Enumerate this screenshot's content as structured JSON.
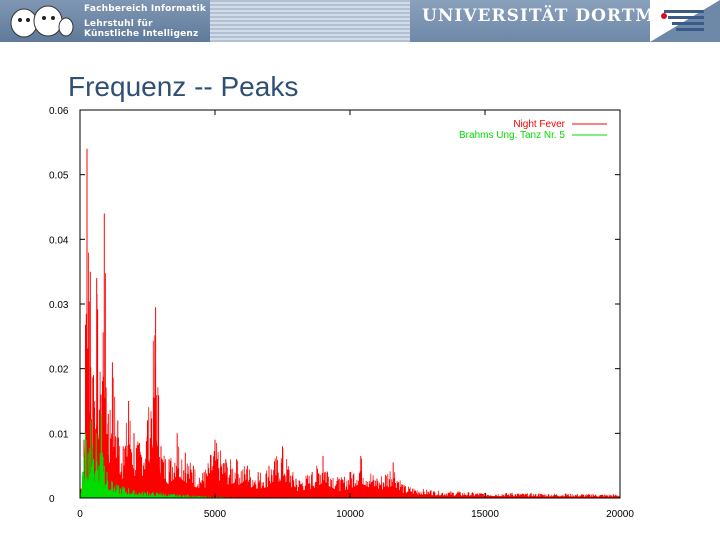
{
  "header": {
    "institute_line1": "Fachbereich Informatik",
    "institute_line2": "Lehrstuhl für",
    "institute_line3": "Künstliche Intelligenz",
    "university": "UNIVERSITÄT DORTMUND"
  },
  "slide": {
    "title": "Frequenz -- Peaks"
  },
  "colors": {
    "series_red": "#ff0000",
    "series_green": "#00dd00",
    "title_blue": "#2f4f75",
    "header_blue": "#6f88a8"
  },
  "chart_data": {
    "type": "area",
    "title": "",
    "xlabel": "",
    "ylabel": "",
    "xlim": [
      0,
      20000
    ],
    "ylim": [
      0,
      0.06
    ],
    "x_ticks": [
      0,
      5000,
      10000,
      15000,
      20000
    ],
    "y_ticks": [
      0,
      0.01,
      0.02,
      0.03,
      0.04,
      0.05,
      0.06
    ],
    "x_tick_labels": [
      "0",
      "5000",
      "10000",
      "15000",
      "20000"
    ],
    "y_tick_labels": [
      "0",
      "0.01",
      "0.02",
      "0.03",
      "0.04",
      "0.05",
      "0.06"
    ],
    "grid": false,
    "legend_position": "top-right",
    "series": [
      {
        "name": "Night Fever",
        "color": "#ff0000",
        "points": [
          [
            0,
            0.0005
          ],
          [
            150,
            0.009
          ],
          [
            260,
            0.054
          ],
          [
            380,
            0.035
          ],
          [
            500,
            0.019
          ],
          [
            620,
            0.034
          ],
          [
            780,
            0.016
          ],
          [
            900,
            0.044
          ],
          [
            1050,
            0.013
          ],
          [
            1200,
            0.021
          ],
          [
            1400,
            0.012
          ],
          [
            1600,
            0.008
          ],
          [
            1800,
            0.015
          ],
          [
            2000,
            0.01
          ],
          [
            2200,
            0.0085
          ],
          [
            2500,
            0.012
          ],
          [
            2800,
            0.0295
          ],
          [
            3000,
            0.008
          ],
          [
            3300,
            0.006
          ],
          [
            3600,
            0.01
          ],
          [
            3900,
            0.007
          ],
          [
            4200,
            0.005
          ],
          [
            4600,
            0.004
          ],
          [
            5000,
            0.009
          ],
          [
            5400,
            0.006
          ],
          [
            5800,
            0.006
          ],
          [
            6200,
            0.005
          ],
          [
            6600,
            0.004
          ],
          [
            7000,
            0.005
          ],
          [
            7500,
            0.008
          ],
          [
            8000,
            0.003
          ],
          [
            8600,
            0.004
          ],
          [
            9000,
            0.0065
          ],
          [
            9600,
            0.003
          ],
          [
            10000,
            0.004
          ],
          [
            10400,
            0.0065
          ],
          [
            11000,
            0.003
          ],
          [
            11600,
            0.0055
          ],
          [
            12000,
            0.002
          ],
          [
            13000,
            0.0012
          ],
          [
            14000,
            0.001
          ],
          [
            15000,
            0.0008
          ],
          [
            16000,
            0.0008
          ],
          [
            17000,
            0.0007
          ],
          [
            18000,
            0.0007
          ],
          [
            19000,
            0.0006
          ],
          [
            20000,
            0.0006
          ]
        ]
      },
      {
        "name": "Brahms Ung. Tanz Nr. 5",
        "color": "#00dd00",
        "points": [
          [
            0,
            0.0003
          ],
          [
            100,
            0.004
          ],
          [
            200,
            0.01
          ],
          [
            300,
            0.007
          ],
          [
            400,
            0.012
          ],
          [
            500,
            0.006
          ],
          [
            600,
            0.01
          ],
          [
            700,
            0.005
          ],
          [
            800,
            0.013
          ],
          [
            900,
            0.005
          ],
          [
            1000,
            0.004
          ],
          [
            1200,
            0.0025
          ],
          [
            1400,
            0.002
          ],
          [
            1600,
            0.0018
          ],
          [
            1800,
            0.0015
          ],
          [
            2000,
            0.0012
          ],
          [
            2500,
            0.001
          ],
          [
            3000,
            0.0008
          ],
          [
            3500,
            0.0006
          ],
          [
            4000,
            0.0005
          ],
          [
            4500,
            0.0003
          ],
          [
            5000,
            0.0002
          ],
          [
            6000,
            0.0001
          ],
          [
            20000,
            0.0001
          ]
        ]
      }
    ]
  }
}
